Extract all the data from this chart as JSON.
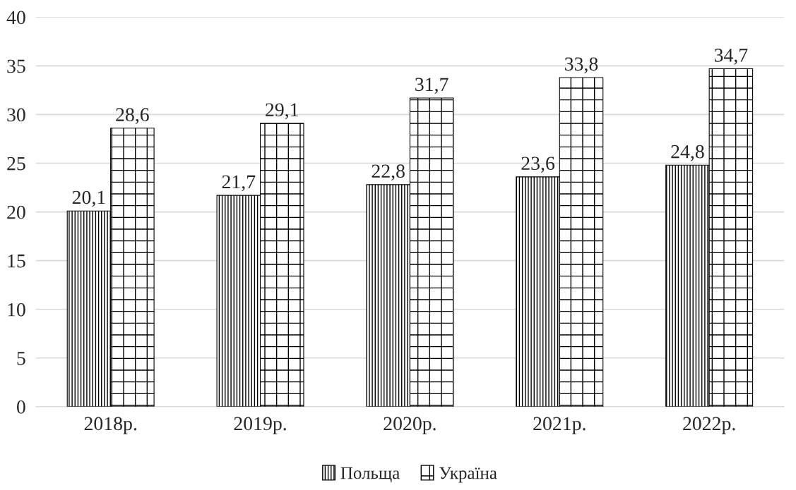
{
  "chart_data": {
    "type": "bar",
    "categories": [
      "2018р.",
      "2019р.",
      "2020р.",
      "2021р.",
      "2022р."
    ],
    "series": [
      {
        "name": "Польща",
        "color": "#000000",
        "values": [
          20.1,
          21.7,
          22.8,
          23.6,
          24.8
        ],
        "value_labels": [
          "20,1",
          "21,7",
          "22,8",
          "23,6",
          "24,8"
        ]
      },
      {
        "name": "Україна",
        "color": "#000000",
        "values": [
          28.6,
          29.1,
          31.7,
          33.8,
          34.7
        ],
        "value_labels": [
          "28,6",
          "29,1",
          "31,7",
          "33,8",
          "34,7"
        ]
      }
    ],
    "ylim": [
      0,
      40
    ],
    "yticks": [
      0,
      5,
      10,
      15,
      20,
      25,
      30,
      35,
      40
    ],
    "grid": "y",
    "legend": "bottom"
  }
}
